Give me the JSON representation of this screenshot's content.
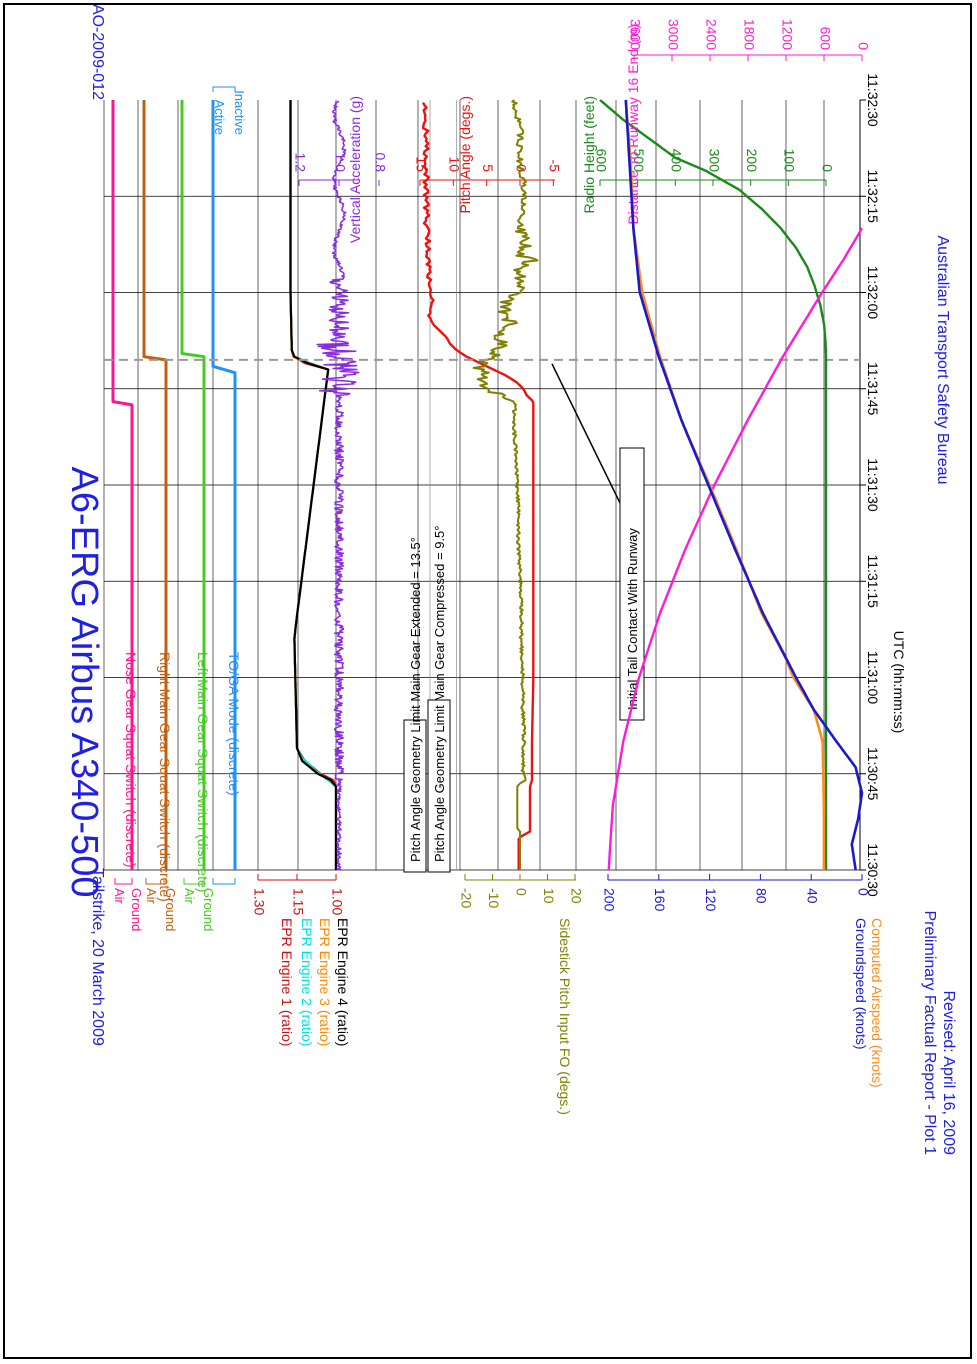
{
  "title": "A6-ERG Airbus A340-500",
  "subtitle_left": "Tailstrike, 20 March 2009",
  "subtitle_right": "AO-2009-012",
  "footer_left_line1": "Preliminary Factual Report - Plot 1",
  "footer_left_line2": "Revised: April 16, 2009",
  "footer_right": "Australian Transport Safety Bureau",
  "colors": {
    "title": "#2020e0",
    "nose_gear": "#ff1493",
    "right_main_gear": "#c06010",
    "left_main_gear": "#44cc22",
    "toga": "#1e90ff",
    "epr1": "#cc1111",
    "epr2": "#00e0e0",
    "epr3": "#ff8800",
    "epr4": "#000000",
    "vertical_accel": "#8a2be2",
    "pitch_angle": "#ee1111",
    "sidestick": "#808000",
    "groundspeed": "#1a1acc",
    "airspeed": "#ff8c1a",
    "radio_height": "#1a8a1a",
    "distance": "#ff1ad9",
    "grid": "#000000"
  },
  "chart_data": {
    "type": "line",
    "orientation": "rotated-90-clockwise",
    "xlabel": "UTC (hh:mm:ss)",
    "x_ticks": [
      "11:30:30",
      "11:30:45",
      "11:31:00",
      "11:31:15",
      "11:31:30",
      "11:31:45",
      "11:32:00",
      "11:32:15",
      "11:32:30"
    ],
    "x_range_seconds_after_11_30_30": [
      0,
      120
    ],
    "discrete_tracks": [
      {
        "name": "Nose Gear Squat Switch (discrete)",
        "high_label": "Air",
        "low_label": "Ground",
        "key": "nose_gear",
        "points": [
          [
            0,
            0
          ],
          [
            72.5,
            0
          ],
          [
            73,
            1
          ],
          [
            120,
            1
          ]
        ]
      },
      {
        "name": "Right Main Gear Squat Switch (discrete)",
        "high_label": "Air",
        "low_label": "Ground",
        "key": "right_main_gear",
        "points": [
          [
            0,
            0
          ],
          [
            79.5,
            0
          ],
          [
            80,
            1
          ],
          [
            120,
            1
          ]
        ]
      },
      {
        "name": "Left Main Gear Squat Switch (discrete)",
        "high_label": "Air",
        "low_label": "Ground",
        "key": "left_main_gear",
        "points": [
          [
            0,
            0
          ],
          [
            80,
            0
          ],
          [
            80.5,
            1
          ],
          [
            120,
            1
          ]
        ]
      },
      {
        "name": "TO/GA Mode (discrete)",
        "high_label": "Active",
        "low_label": "Inactive",
        "key": "toga",
        "points": [
          [
            0,
            0
          ],
          [
            77.5,
            0
          ],
          [
            78.5,
            1
          ],
          [
            120,
            1
          ]
        ]
      }
    ],
    "epr_axis": {
      "label_series": [
        "EPR Engine 1 (ratio)",
        "EPR Engine 2 (ratio)",
        "EPR Engine 3 (ratio)",
        "EPR Engine 4 (ratio)"
      ],
      "ticks": [
        "1.00",
        "1.15",
        "1.30"
      ],
      "range": [
        1.0,
        1.3
      ]
    },
    "epr_series": [
      {
        "name": "EPR Engine 1 (ratio)",
        "key": "epr1",
        "points": [
          [
            0,
            1.0
          ],
          [
            13,
            1.0
          ],
          [
            14,
            1.01
          ],
          [
            15,
            1.06
          ],
          [
            17,
            1.12
          ],
          [
            19,
            1.15
          ],
          [
            36,
            1.16
          ],
          [
            38,
            1.155
          ],
          [
            78,
            1.03
          ],
          [
            79,
            1.12
          ],
          [
            80,
            1.16
          ],
          [
            81,
            1.17
          ],
          [
            90,
            1.175
          ],
          [
            120,
            1.175
          ]
        ]
      },
      {
        "name": "EPR Engine 2 (ratio)",
        "key": "epr2",
        "points": [
          [
            0,
            1.0
          ],
          [
            13,
            1.0
          ],
          [
            14,
            1.03
          ],
          [
            15.5,
            1.08
          ],
          [
            17.5,
            1.13
          ],
          [
            19,
            1.15
          ],
          [
            36,
            1.16
          ],
          [
            38,
            1.155
          ],
          [
            78,
            1.03
          ],
          [
            79,
            1.1
          ],
          [
            80,
            1.16
          ],
          [
            81,
            1.17
          ],
          [
            90,
            1.175
          ],
          [
            120,
            1.175
          ]
        ]
      },
      {
        "name": "EPR Engine 3 (ratio)",
        "key": "epr3",
        "points": [
          [
            0,
            1.0
          ],
          [
            13,
            1.0
          ],
          [
            14,
            1.02
          ],
          [
            15,
            1.07
          ],
          [
            17,
            1.13
          ],
          [
            19,
            1.15
          ],
          [
            36,
            1.16
          ],
          [
            38,
            1.155
          ],
          [
            78,
            1.03
          ],
          [
            79,
            1.11
          ],
          [
            80,
            1.165
          ],
          [
            81,
            1.17
          ],
          [
            90,
            1.175
          ],
          [
            120,
            1.175
          ]
        ]
      },
      {
        "name": "EPR Engine 4 (ratio)",
        "key": "epr4",
        "points": [
          [
            0,
            1.0
          ],
          [
            13,
            1.0
          ],
          [
            14,
            1.02
          ],
          [
            15,
            1.07
          ],
          [
            17,
            1.13
          ],
          [
            19,
            1.15
          ],
          [
            36,
            1.16
          ],
          [
            38,
            1.155
          ],
          [
            78,
            1.03
          ],
          [
            79,
            1.11
          ],
          [
            80,
            1.16
          ],
          [
            81,
            1.17
          ],
          [
            90,
            1.175
          ],
          [
            120,
            1.175
          ]
        ]
      }
    ],
    "vertical_accel": {
      "name": "Vertical Acceleration (g)",
      "key": "vertical_accel",
      "ticks": [
        "0.8",
        "1.0",
        "1.2"
      ],
      "range": [
        0.8,
        1.3
      ],
      "baseline": 1.0,
      "noise_segments": [
        [
          0,
          70,
          0.01
        ],
        [
          14,
          75,
          0.025
        ],
        [
          75,
          82,
          0.12
        ],
        [
          82,
          92,
          0.05
        ],
        [
          92,
          120,
          0.015
        ]
      ]
    },
    "pitch_angle": {
      "name": "Pitch Angle (degs.)",
      "key": "pitch_angle",
      "ticks": [
        "-5",
        "0",
        "5",
        "10",
        "15"
      ],
      "range": [
        -5,
        15
      ],
      "points": [
        [
          0,
          0.2
        ],
        [
          5,
          0.2
        ],
        [
          6,
          -1.5
        ],
        [
          13,
          -1.5
        ],
        [
          14,
          -1.8
        ],
        [
          20,
          -1.8
        ],
        [
          30,
          -2.0
        ],
        [
          40,
          -2.0
        ],
        [
          50,
          -2.0
        ],
        [
          60,
          -2.0
        ],
        [
          68,
          -2.0
        ],
        [
          73,
          -2.0
        ],
        [
          74,
          -1.0
        ],
        [
          75,
          -0.5
        ],
        [
          76,
          0.5
        ],
        [
          77,
          2.0
        ],
        [
          78,
          4.0
        ],
        [
          79,
          6.0
        ],
        [
          80,
          8.0
        ],
        [
          81,
          9.5
        ],
        [
          82,
          10.5
        ],
        [
          83,
          11.0
        ],
        [
          84,
          12.0
        ],
        [
          85,
          13.0
        ],
        [
          86,
          13.5
        ],
        [
          88,
          13.0
        ],
        [
          90,
          13.3
        ],
        [
          92,
          13.6
        ],
        [
          96,
          13.8
        ],
        [
          100,
          14.0
        ],
        [
          120,
          14.2
        ]
      ]
    },
    "sidestick": {
      "name": "Sidestick Pitch Input FO (degs.)",
      "key": "sidestick",
      "ticks": [
        "-20",
        "-10",
        "0",
        "10",
        "20"
      ],
      "range": [
        20,
        -20
      ],
      "points": [
        [
          0,
          0
        ],
        [
          6,
          0
        ],
        [
          6.5,
          -1
        ],
        [
          13,
          -1
        ],
        [
          13.5,
          0
        ],
        [
          14,
          2
        ],
        [
          15,
          1
        ],
        [
          20,
          1.5
        ],
        [
          25,
          1
        ],
        [
          30,
          1
        ],
        [
          35,
          0.5
        ],
        [
          40,
          0.5
        ],
        [
          45,
          0
        ],
        [
          50,
          -0.5
        ],
        [
          55,
          -0.5
        ],
        [
          60,
          -1
        ],
        [
          68,
          -2
        ],
        [
          73,
          -2
        ],
        [
          74,
          -8
        ],
        [
          75,
          -12
        ],
        [
          76,
          -14
        ],
        [
          77,
          -12
        ],
        [
          78,
          -15
        ],
        [
          79,
          -13
        ],
        [
          80,
          -10
        ],
        [
          81,
          -8
        ],
        [
          82,
          -6
        ],
        [
          83,
          -9
        ],
        [
          84,
          -6
        ],
        [
          85,
          -3
        ],
        [
          86,
          -5
        ],
        [
          88,
          -6
        ],
        [
          90,
          -2
        ],
        [
          92,
          2
        ],
        [
          93,
          -3
        ],
        [
          95,
          4
        ],
        [
          96,
          -1
        ],
        [
          98,
          3
        ],
        [
          100,
          0
        ],
        [
          105,
          2
        ],
        [
          110,
          0
        ],
        [
          115,
          0
        ],
        [
          120,
          -2
        ]
      ]
    },
    "pitch_limit_extended": {
      "label": "Pitch Angle Geometry Limit Main Gear Extended = 13.5°",
      "value": 13.5
    },
    "pitch_limit_compressed": {
      "label": "Pitch Angle Geometry Limit Main Gear Compressed = 9.5°",
      "value": 9.5
    },
    "annotation": "Initial Tail Contact With Runway",
    "tail_contact_time": 79.5,
    "speed_axis": {
      "label_series": [
        "Groundspeed (knots)",
        "Computed Airspeed (knots)"
      ],
      "ticks": [
        "0",
        "40",
        "80",
        "120",
        "160",
        "200"
      ],
      "range": [
        0,
        220
      ]
    },
    "groundspeed": {
      "name": "Groundspeed (knots)",
      "key": "groundspeed",
      "points": [
        [
          0,
          5
        ],
        [
          4,
          8
        ],
        [
          8,
          3
        ],
        [
          12,
          0
        ],
        [
          16,
          5
        ],
        [
          20,
          20
        ],
        [
          25,
          38
        ],
        [
          30,
          52
        ],
        [
          40,
          78
        ],
        [
          50,
          100
        ],
        [
          60,
          121
        ],
        [
          70,
          142
        ],
        [
          80,
          160
        ],
        [
          90,
          175
        ],
        [
          100,
          180
        ],
        [
          110,
          183
        ],
        [
          120,
          186
        ]
      ]
    },
    "airspeed": {
      "name": "Computed Airspeed (knots)",
      "key": "airspeed",
      "points": [
        [
          0,
          30
        ],
        [
          10,
          30
        ],
        [
          20,
          31
        ],
        [
          25,
          38
        ],
        [
          30,
          54
        ],
        [
          33,
          60
        ],
        [
          40,
          79
        ],
        [
          50,
          99
        ],
        [
          60,
          120
        ],
        [
          70,
          142
        ],
        [
          80,
          159
        ],
        [
          90,
          173
        ],
        [
          100,
          180
        ],
        [
          110,
          182
        ],
        [
          120,
          186
        ]
      ]
    },
    "radio_height": {
      "name": "Radio Height (feet)",
      "key": "radio_height",
      "ticks": [
        "0",
        "100",
        "200",
        "300",
        "400",
        "500",
        "600"
      ],
      "range": [
        0,
        600
      ],
      "points": [
        [
          0,
          0
        ],
        [
          80,
          0
        ],
        [
          82,
          1
        ],
        [
          85,
          5
        ],
        [
          88,
          15
        ],
        [
          91,
          30
        ],
        [
          94,
          50
        ],
        [
          97,
          80
        ],
        [
          100,
          120
        ],
        [
          103,
          170
        ],
        [
          106,
          230
        ],
        [
          109,
          320
        ],
        [
          111,
          400
        ],
        [
          114,
          470
        ],
        [
          117,
          540
        ],
        [
          120,
          600
        ]
      ]
    },
    "distance": {
      "name": "Distance To Runway 16 End (m)",
      "key": "distance",
      "ticks": [
        "0",
        "600",
        "1200",
        "1800",
        "2400",
        "3000",
        "3600"
      ],
      "range": [
        0,
        3600
      ],
      "points": [
        [
          0,
          4000
        ],
        [
          10,
          3935
        ],
        [
          20,
          3770
        ],
        [
          30,
          3520
        ],
        [
          40,
          3190
        ],
        [
          50,
          2790
        ],
        [
          60,
          2330
        ],
        [
          70,
          1810
        ],
        [
          80,
          1250
        ],
        [
          85,
          940
        ],
        [
          90,
          630
        ],
        [
          95,
          300
        ],
        [
          100,
          0
        ]
      ]
    }
  }
}
